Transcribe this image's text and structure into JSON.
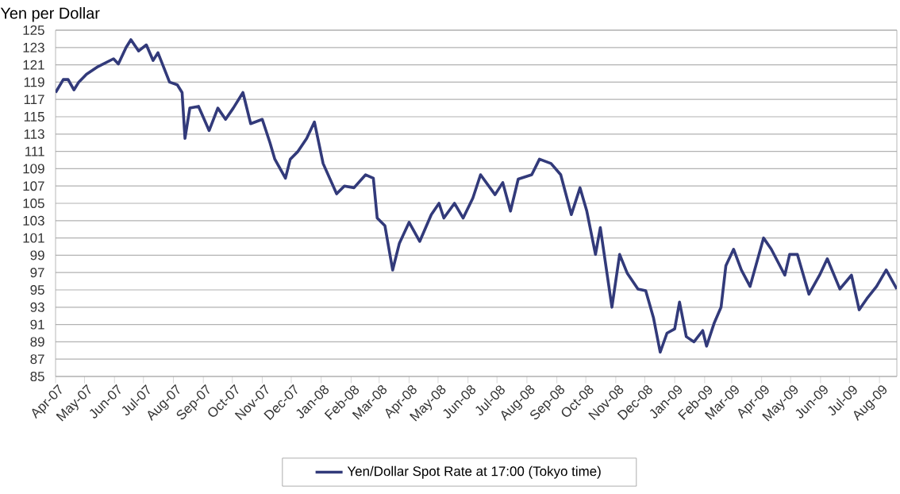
{
  "chart_data": {
    "type": "line",
    "ylabel": "Yen per Dollar",
    "x": [
      "2007-04-01",
      "2007-04-09",
      "2007-04-14",
      "2007-04-20",
      "2007-04-25",
      "2007-05-03",
      "2007-05-15",
      "2007-05-31",
      "2007-06-05",
      "2007-06-13",
      "2007-06-18",
      "2007-06-26",
      "2007-07-04",
      "2007-07-11",
      "2007-07-16",
      "2007-07-28",
      "2007-08-05",
      "2007-08-10",
      "2007-08-13",
      "2007-08-18",
      "2007-08-27",
      "2007-09-07",
      "2007-09-16",
      "2007-09-24",
      "2007-10-02",
      "2007-10-12",
      "2007-10-20",
      "2007-11-01",
      "2007-11-09",
      "2007-11-14",
      "2007-11-25",
      "2007-11-30",
      "2007-12-08",
      "2007-12-17",
      "2007-12-25",
      "2008-01-03",
      "2008-01-17",
      "2008-01-25",
      "2008-02-04",
      "2008-02-16",
      "2008-02-24",
      "2008-02-28",
      "2008-03-07",
      "2008-03-15",
      "2008-03-22",
      "2008-04-01",
      "2008-04-12",
      "2008-04-24",
      "2008-05-02",
      "2008-05-07",
      "2008-05-18",
      "2008-05-27",
      "2008-06-06",
      "2008-06-14",
      "2008-06-29",
      "2008-07-07",
      "2008-07-15",
      "2008-07-23",
      "2008-08-06",
      "2008-08-14",
      "2008-08-26",
      "2008-09-05",
      "2008-09-16",
      "2008-09-25",
      "2008-10-02",
      "2008-10-11",
      "2008-10-16",
      "2008-10-28",
      "2008-11-05",
      "2008-11-13",
      "2008-11-24",
      "2008-12-02",
      "2008-12-10",
      "2008-12-17",
      "2008-12-24",
      "2009-01-01",
      "2009-01-06",
      "2009-01-13",
      "2009-01-21",
      "2009-01-30",
      "2009-02-03",
      "2009-02-11",
      "2009-02-18",
      "2009-02-23",
      "2009-03-03",
      "2009-03-11",
      "2009-03-20",
      "2009-04-03",
      "2009-04-11",
      "2009-04-25",
      "2009-04-30",
      "2009-05-08",
      "2009-05-20",
      "2009-05-31",
      "2009-06-08",
      "2009-06-21",
      "2009-07-03",
      "2009-07-11",
      "2009-07-19",
      "2009-07-29",
      "2009-08-08",
      "2009-08-19"
    ],
    "series": [
      {
        "name": "Yen/Dollar Spot Rate at 17:00 (Tokyo time)",
        "color": "#323a7a",
        "values": [
          117.8,
          119.3,
          119.3,
          118.1,
          119.0,
          119.9,
          120.8,
          121.7,
          121.1,
          123.0,
          123.9,
          122.6,
          123.3,
          121.5,
          122.4,
          119.0,
          118.7,
          117.8,
          112.5,
          116.0,
          116.2,
          113.4,
          116.0,
          114.7,
          116.0,
          117.8,
          114.2,
          114.7,
          112.0,
          110.1,
          107.9,
          110.1,
          111.0,
          112.5,
          114.4,
          109.6,
          106.1,
          107.0,
          106.8,
          108.3,
          107.9,
          103.3,
          102.4,
          97.3,
          100.4,
          102.8,
          100.6,
          103.7,
          105.0,
          103.3,
          105.0,
          103.3,
          105.6,
          108.3,
          106.0,
          107.4,
          104.1,
          107.8,
          108.3,
          110.1,
          109.6,
          108.3,
          103.7,
          106.8,
          104.1,
          99.1,
          102.2,
          93.0,
          99.1,
          96.9,
          95.1,
          94.9,
          91.8,
          87.8,
          90.0,
          90.5,
          93.6,
          89.6,
          89.0,
          90.3,
          88.5,
          91.2,
          93.0,
          97.8,
          99.7,
          97.3,
          95.4,
          101.0,
          99.7,
          96.7,
          99.1,
          99.1,
          94.5,
          96.7,
          98.6,
          95.1,
          96.7,
          92.7,
          94.0,
          95.4,
          97.3,
          95.1
        ]
      }
    ],
    "xlim": [
      "2007-04-01",
      "2009-08-19"
    ],
    "xticks": [
      {
        "value": "2007-04-01",
        "label": "Apr-07"
      },
      {
        "value": "2007-05-01",
        "label": "May-07"
      },
      {
        "value": "2007-06-01",
        "label": "Jun-07"
      },
      {
        "value": "2007-07-01",
        "label": "Jul-07"
      },
      {
        "value": "2007-08-01",
        "label": "Aug-07"
      },
      {
        "value": "2007-09-01",
        "label": "Sep-07"
      },
      {
        "value": "2007-10-01",
        "label": "Oct-07"
      },
      {
        "value": "2007-11-01",
        "label": "Nov-07"
      },
      {
        "value": "2007-12-01",
        "label": "Dec-07"
      },
      {
        "value": "2008-01-01",
        "label": "Jan-08"
      },
      {
        "value": "2008-02-01",
        "label": "Feb-08"
      },
      {
        "value": "2008-03-01",
        "label": "Mar-08"
      },
      {
        "value": "2008-04-01",
        "label": "Apr-08"
      },
      {
        "value": "2008-05-01",
        "label": "May-08"
      },
      {
        "value": "2008-06-01",
        "label": "Jun-08"
      },
      {
        "value": "2008-07-01",
        "label": "Jul-08"
      },
      {
        "value": "2008-08-01",
        "label": "Aug-08"
      },
      {
        "value": "2008-09-01",
        "label": "Sep-08"
      },
      {
        "value": "2008-10-01",
        "label": "Oct-08"
      },
      {
        "value": "2008-11-01",
        "label": "Nov-08"
      },
      {
        "value": "2008-12-01",
        "label": "Dec-08"
      },
      {
        "value": "2009-01-01",
        "label": "Jan-09"
      },
      {
        "value": "2009-02-01",
        "label": "Feb-09"
      },
      {
        "value": "2009-03-01",
        "label": "Mar-09"
      },
      {
        "value": "2009-04-01",
        "label": "Apr-09"
      },
      {
        "value": "2009-05-01",
        "label": "May-09"
      },
      {
        "value": "2009-06-01",
        "label": "Jun-09"
      },
      {
        "value": "2009-07-01",
        "label": "Jul-09"
      },
      {
        "value": "2009-08-01",
        "label": "Aug-09"
      }
    ],
    "ylim": [
      85,
      125
    ],
    "yticks": [
      85,
      87,
      89,
      91,
      93,
      95,
      97,
      99,
      101,
      103,
      105,
      107,
      109,
      111,
      113,
      115,
      117,
      119,
      121,
      123,
      125
    ],
    "grid": "y",
    "legend": "bottom",
    "line_style": "solid",
    "marker": "none"
  }
}
